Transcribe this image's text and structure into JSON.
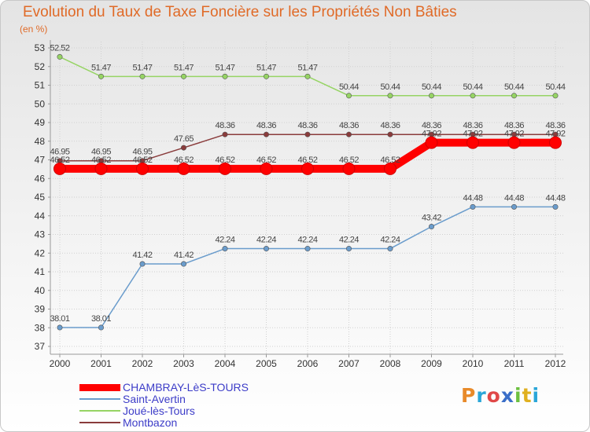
{
  "title": "Evolution du Taux de Taxe Foncière sur les Propriétés Non Bâties",
  "unit_label": "(en %)",
  "logo_text": "Proxiti",
  "logo_colors": [
    "#e88a2a",
    "#2aa6d8",
    "#e04848",
    "#3a6ec8",
    "#6cc040",
    "#e0b020",
    "#2aa6d8"
  ],
  "chart_data": {
    "type": "line",
    "title": "Evolution du Taux de Taxe Foncière sur les Propriétés Non Bâties",
    "ylabel": "(en %)",
    "xlabel": "",
    "categories": [
      "2000",
      "2001",
      "2002",
      "2003",
      "2004",
      "2005",
      "2006",
      "2007",
      "2008",
      "2009",
      "2010",
      "2011",
      "2012"
    ],
    "ylim": [
      37,
      53
    ],
    "yticks": [
      "37",
      "38",
      "39",
      "40",
      "41",
      "42",
      "43",
      "44",
      "45",
      "46",
      "47",
      "48",
      "49",
      "50",
      "51",
      "52",
      "53"
    ],
    "grid": true,
    "legend_position": "bottom-left",
    "series": [
      {
        "name": "CHAMBRAY-LèS-TOURS",
        "color": "#ff0000",
        "emphasis": true,
        "values": [
          46.52,
          46.52,
          46.52,
          46.52,
          46.52,
          46.52,
          46.52,
          46.52,
          46.52,
          47.92,
          47.92,
          47.92,
          47.92
        ],
        "labels": [
          "46.52",
          "46.52",
          "46.52",
          "46.52",
          "46.52",
          "46.52",
          "46.52",
          "46.52",
          "46.52",
          "47.92",
          "47.92",
          "47.92",
          "47.92"
        ]
      },
      {
        "name": "Saint-Avertin",
        "color": "#6a9ccc",
        "values": [
          38.01,
          38.01,
          41.42,
          41.42,
          42.24,
          42.24,
          42.24,
          42.24,
          42.24,
          43.42,
          44.48,
          44.48,
          44.48
        ],
        "labels": [
          "38.01",
          "38.01",
          "41.42",
          "41.42",
          "42.24",
          "42.24",
          "42.24",
          "42.24",
          "42.24",
          "43.42",
          "44.48",
          "44.48",
          "44.48"
        ]
      },
      {
        "name": "Joué-lès-Tours",
        "color": "#96d464",
        "values": [
          52.52,
          51.47,
          51.47,
          51.47,
          51.47,
          51.47,
          51.47,
          50.44,
          50.44,
          50.44,
          50.44,
          50.44,
          50.44
        ],
        "labels": [
          "52.52",
          "51.47",
          "51.47",
          "51.47",
          "51.47",
          "51.47",
          "51.47",
          "50.44",
          "50.44",
          "50.44",
          "50.44",
          "50.44",
          "50.44"
        ]
      },
      {
        "name": "Montbazon",
        "color": "#8a3c3c",
        "values": [
          46.95,
          46.95,
          46.95,
          47.65,
          48.36,
          48.36,
          48.36,
          48.36,
          48.36,
          48.36,
          48.36,
          48.36,
          48.36
        ],
        "labels": [
          "46.95",
          "46.95",
          "46.95",
          "47.65",
          "48.36",
          "48.36",
          "48.36",
          "48.36",
          "48.36",
          "48.36",
          "48.36",
          "48.36",
          "48.36"
        ]
      }
    ]
  }
}
